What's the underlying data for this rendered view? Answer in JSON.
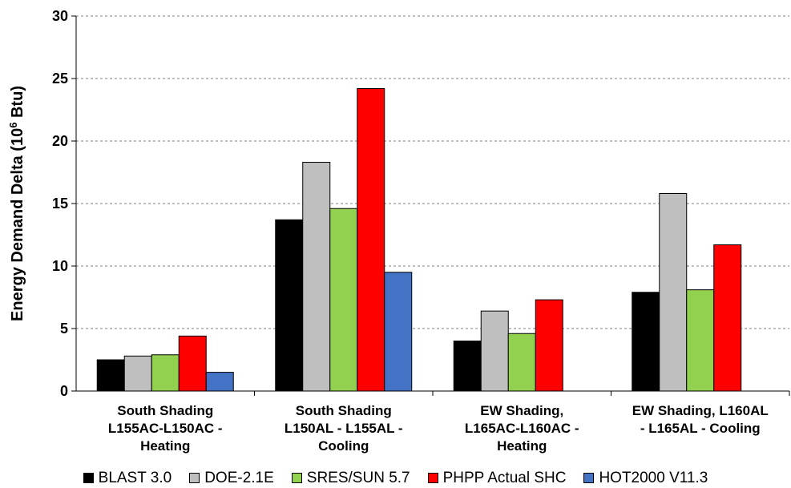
{
  "chart_data": {
    "type": "bar",
    "title": "",
    "xlabel": "",
    "ylabel": "Energy Demand Delta (10",
    "ylabel_superscript": "6",
    "ylabel_suffix": " Btu)",
    "ylim": [
      0,
      30
    ],
    "yticks": [
      "0",
      "5",
      "10",
      "15",
      "20",
      "25",
      "30"
    ],
    "grid": true,
    "legend_position": "bottom",
    "categories": [
      [
        "South Shading",
        "L155AC-L150AC -",
        "Heating"
      ],
      [
        "South Shading",
        "L150AL - L155AL -",
        "Cooling"
      ],
      [
        "EW Shading,",
        "L165AC-L160AC -",
        "Heating"
      ],
      [
        "EW Shading, L160AL",
        "- L165AL - Cooling"
      ]
    ],
    "series": [
      {
        "name": "BLAST 3.0",
        "color": "#000000",
        "values": [
          2.5,
          13.7,
          4.0,
          7.9
        ]
      },
      {
        "name": "DOE-2.1E",
        "color": "#bfbfbf",
        "values": [
          2.8,
          18.3,
          6.4,
          15.8
        ]
      },
      {
        "name": "SRES/SUN 5.7",
        "color": "#92d050",
        "values": [
          2.9,
          14.6,
          4.6,
          8.1
        ]
      },
      {
        "name": "PHPP Actual SHC",
        "color": "#ff0000",
        "values": [
          4.4,
          24.2,
          7.3,
          11.7
        ]
      },
      {
        "name": "HOT2000 V11.3",
        "color": "#4472c4",
        "values": [
          1.5,
          9.5,
          null,
          null
        ]
      }
    ]
  }
}
